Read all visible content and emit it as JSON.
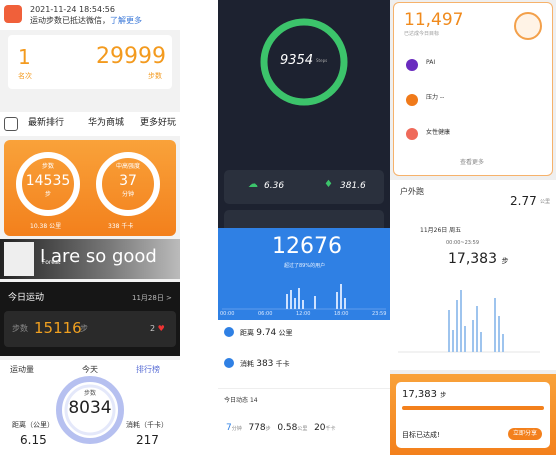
{
  "left": {
    "notice": {
      "time": "2021-11-24 18:54:56",
      "text": "运动步数已抵达微信，",
      "link": "了解更多"
    },
    "rank": {
      "rank": "1",
      "rank_label": "名次",
      "steps": "29999",
      "steps_label": "步数"
    },
    "tabs": [
      "最新排行",
      "华为商城",
      "更多好玩"
    ],
    "rings": [
      {
        "label": "步数",
        "value": "14535",
        "unit": "步"
      },
      {
        "label": "中高强度",
        "value": "37",
        "unit": "分钟"
      }
    ],
    "ring_footer": [
      "10.38 公里",
      "338 千卡"
    ],
    "banner": {
      "text": "I are so good",
      "name": "Forest"
    },
    "today": {
      "title": "今日运动",
      "date": "11月28日 >",
      "steps_label": "步数",
      "steps": "15116",
      "unit": "步",
      "likes": "2"
    },
    "activity": {
      "title": "运动量",
      "rank_link": "排行榜",
      "day": "今天",
      "steps_label": "步数",
      "steps": "8034",
      "distance_label": "距离（公里）",
      "distance": "6.15",
      "calories_label": "消耗（千卡）",
      "calories": "217"
    }
  },
  "middle": {
    "ring": {
      "steps": "9354",
      "unit": "Steps"
    },
    "stats": [
      "6.36",
      "381.6"
    ],
    "summary": {
      "steps": "12676",
      "subtitle": "超过了89%的用户"
    },
    "axis": [
      "00:00",
      "06:00",
      "12:00",
      "18:00",
      "23:59"
    ],
    "distance": {
      "label": "距离",
      "value": "9.74",
      "unit": "公里"
    },
    "calories": {
      "label": "消耗",
      "value": "383",
      "unit": "千卡"
    },
    "feed": {
      "title": "今日动态",
      "count": "14"
    },
    "row": [
      "7",
      "分钟",
      "778",
      "步",
      "0.58",
      "公里",
      "20",
      "千卡"
    ]
  },
  "right": {
    "goal": {
      "steps": "11,497",
      "subtitle": "已达成今日目标"
    },
    "items": [
      "PAI",
      "压力 --",
      "女性健康"
    ],
    "more": "查看更多",
    "run": {
      "title": "户外跑",
      "distance": "2.77",
      "unit": "公里"
    },
    "day": {
      "date": "11月26日 周五",
      "range": "00:00~23:59",
      "steps": "17,383",
      "unit": "步"
    },
    "share": {
      "steps": "17,383",
      "unit": "步",
      "message": "目标已达成!",
      "button": "立即分享"
    }
  }
}
